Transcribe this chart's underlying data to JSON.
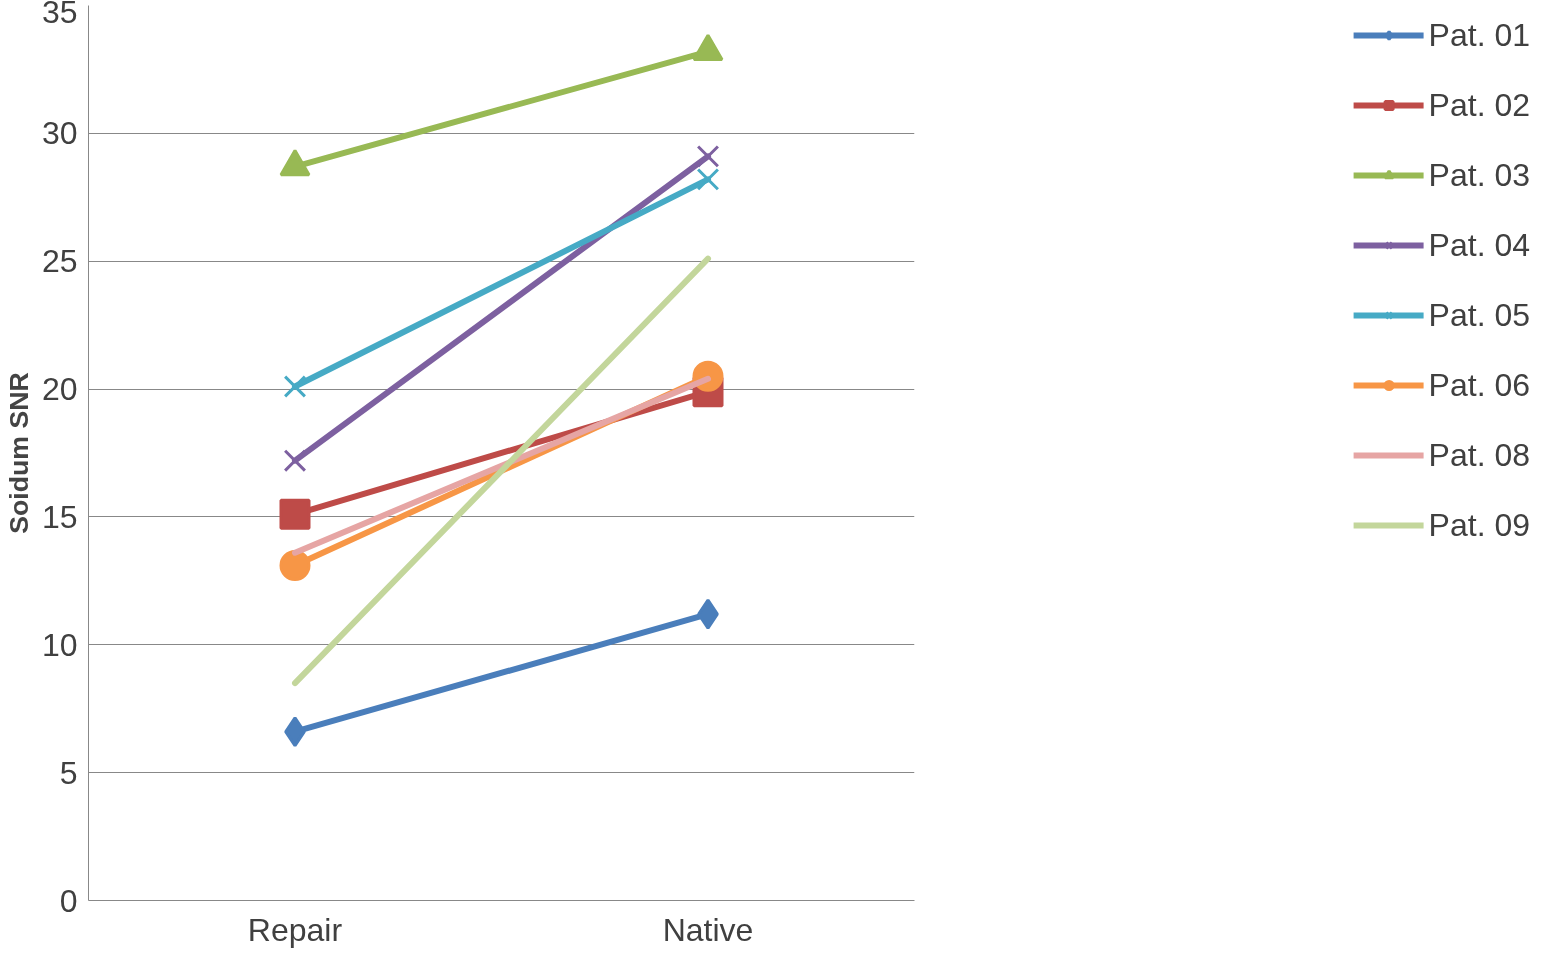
{
  "chart_data": {
    "type": "line",
    "ylabel": "Soidum SNR",
    "categories": [
      "Repair",
      "Native"
    ],
    "ylim": [
      0,
      35
    ],
    "yticks": [
      0,
      5,
      10,
      15,
      20,
      25,
      30,
      35
    ],
    "grid": "y",
    "legend": "right",
    "series": [
      {
        "name": "Pat. 01",
        "color": "#4a7ebb",
        "marker": "diamond",
        "values": [
          6.6,
          11.2
        ]
      },
      {
        "name": "Pat. 02",
        "color": "#be4b48",
        "marker": "square",
        "values": [
          15.1,
          19.9
        ]
      },
      {
        "name": "Pat. 03",
        "color": "#98b954",
        "marker": "triangle",
        "values": [
          28.7,
          33.2
        ]
      },
      {
        "name": "Pat. 04",
        "color": "#7d60a0",
        "marker": "x",
        "values": [
          17.2,
          29.1
        ]
      },
      {
        "name": "Pat. 05",
        "color": "#46aac5",
        "marker": "cross",
        "values": [
          20.1,
          28.2
        ]
      },
      {
        "name": "Pat. 06",
        "color": "#f79646",
        "marker": "circle",
        "values": [
          13.1,
          20.5
        ]
      },
      {
        "name": "Pat. 08",
        "color": "#e6a5a4",
        "marker": "none",
        "values": [
          13.6,
          20.4
        ]
      },
      {
        "name": "Pat. 09",
        "color": "#c3d69b",
        "marker": "none",
        "values": [
          8.5,
          25.1
        ]
      }
    ]
  }
}
